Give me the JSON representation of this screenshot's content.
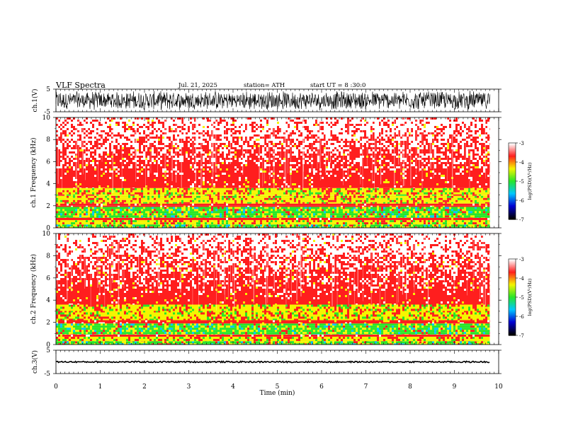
{
  "header": {
    "title": "VLF  Spectra",
    "date": "Jul.  21, 2025",
    "station": "station= ATH",
    "start": "start  UT  =    8  :30:0"
  },
  "chart_data": [
    {
      "type": "line",
      "name": "ch1-waveform",
      "ylabel": "ch.1(V)",
      "ylim": [
        -5,
        5
      ],
      "yticks": [
        "5",
        "-5"
      ],
      "xlim": [
        0,
        10
      ],
      "data_extent_min": 9.8,
      "amplitude_v": 4.5
    },
    {
      "type": "heatmap",
      "name": "ch1-spectrogram",
      "ylabel": "ch.1 Frequency  (kHz)",
      "ylim": [
        0,
        10
      ],
      "yticks": [
        "0",
        "2",
        "4",
        "6",
        "8",
        "10"
      ],
      "xlim": [
        0,
        10
      ],
      "data_extent_min": 9.8,
      "bands_khz": [
        {
          "from": 0.0,
          "to": 0.3,
          "level": "green"
        },
        {
          "from": 0.3,
          "to": 0.7,
          "level": "yellow"
        },
        {
          "from": 0.7,
          "to": 0.9,
          "level": "red"
        },
        {
          "from": 0.9,
          "to": 1.9,
          "level": "green"
        },
        {
          "from": 1.9,
          "to": 2.2,
          "level": "red"
        },
        {
          "from": 2.2,
          "to": 2.9,
          "level": "yellow"
        },
        {
          "from": 2.9,
          "to": 3.6,
          "level": "yellow"
        },
        {
          "from": 3.6,
          "to": 10.0,
          "level": "red"
        }
      ],
      "colorbar": {
        "label": "log(PSD)(V²/Hz)",
        "range": [
          -7,
          -3
        ],
        "ticks": [
          "-3",
          "-4",
          "-5",
          "-6",
          "-7"
        ]
      }
    },
    {
      "type": "heatmap",
      "name": "ch2-spectrogram",
      "ylabel": "ch.2 Frequency  (kHz)",
      "ylim": [
        0,
        10
      ],
      "yticks": [
        "0",
        "2",
        "4",
        "6",
        "8",
        "10"
      ],
      "xlim": [
        0,
        10
      ],
      "data_extent_min": 9.8,
      "bands_khz": [
        {
          "from": 0.0,
          "to": 0.3,
          "level": "green"
        },
        {
          "from": 0.3,
          "to": 0.7,
          "level": "yellow"
        },
        {
          "from": 0.7,
          "to": 0.9,
          "level": "red"
        },
        {
          "from": 0.9,
          "to": 1.9,
          "level": "green"
        },
        {
          "from": 1.9,
          "to": 2.2,
          "level": "red"
        },
        {
          "from": 2.2,
          "to": 2.9,
          "level": "yellow"
        },
        {
          "from": 2.9,
          "to": 3.6,
          "level": "yellow"
        },
        {
          "from": 3.6,
          "to": 10.0,
          "level": "red"
        }
      ],
      "colorbar": {
        "label": "log(PSD)(V²/Hz)",
        "range": [
          -7,
          -3
        ],
        "ticks": [
          "-3",
          "-4",
          "-5",
          "-6",
          "-7"
        ]
      }
    },
    {
      "type": "line",
      "name": "ch3-waveform",
      "ylabel": "ch.3(V)",
      "ylim": [
        -5,
        5
      ],
      "yticks": [
        "5",
        "-5"
      ],
      "xlim": [
        0,
        10
      ],
      "data_extent_min": 9.8,
      "amplitude_v": 0.3
    }
  ],
  "xaxis": {
    "label": "Time  (min)",
    "ticks": [
      "0",
      "1",
      "2",
      "3",
      "4",
      "5",
      "6",
      "7",
      "8",
      "9",
      "10"
    ]
  },
  "colors": {
    "white": "#ffffff",
    "red": "#ff1e1e",
    "yellow": "#f5f500",
    "green": "#28e628",
    "cyan": "#00c8ff",
    "blue": "#0000d2",
    "black": "#000000"
  }
}
